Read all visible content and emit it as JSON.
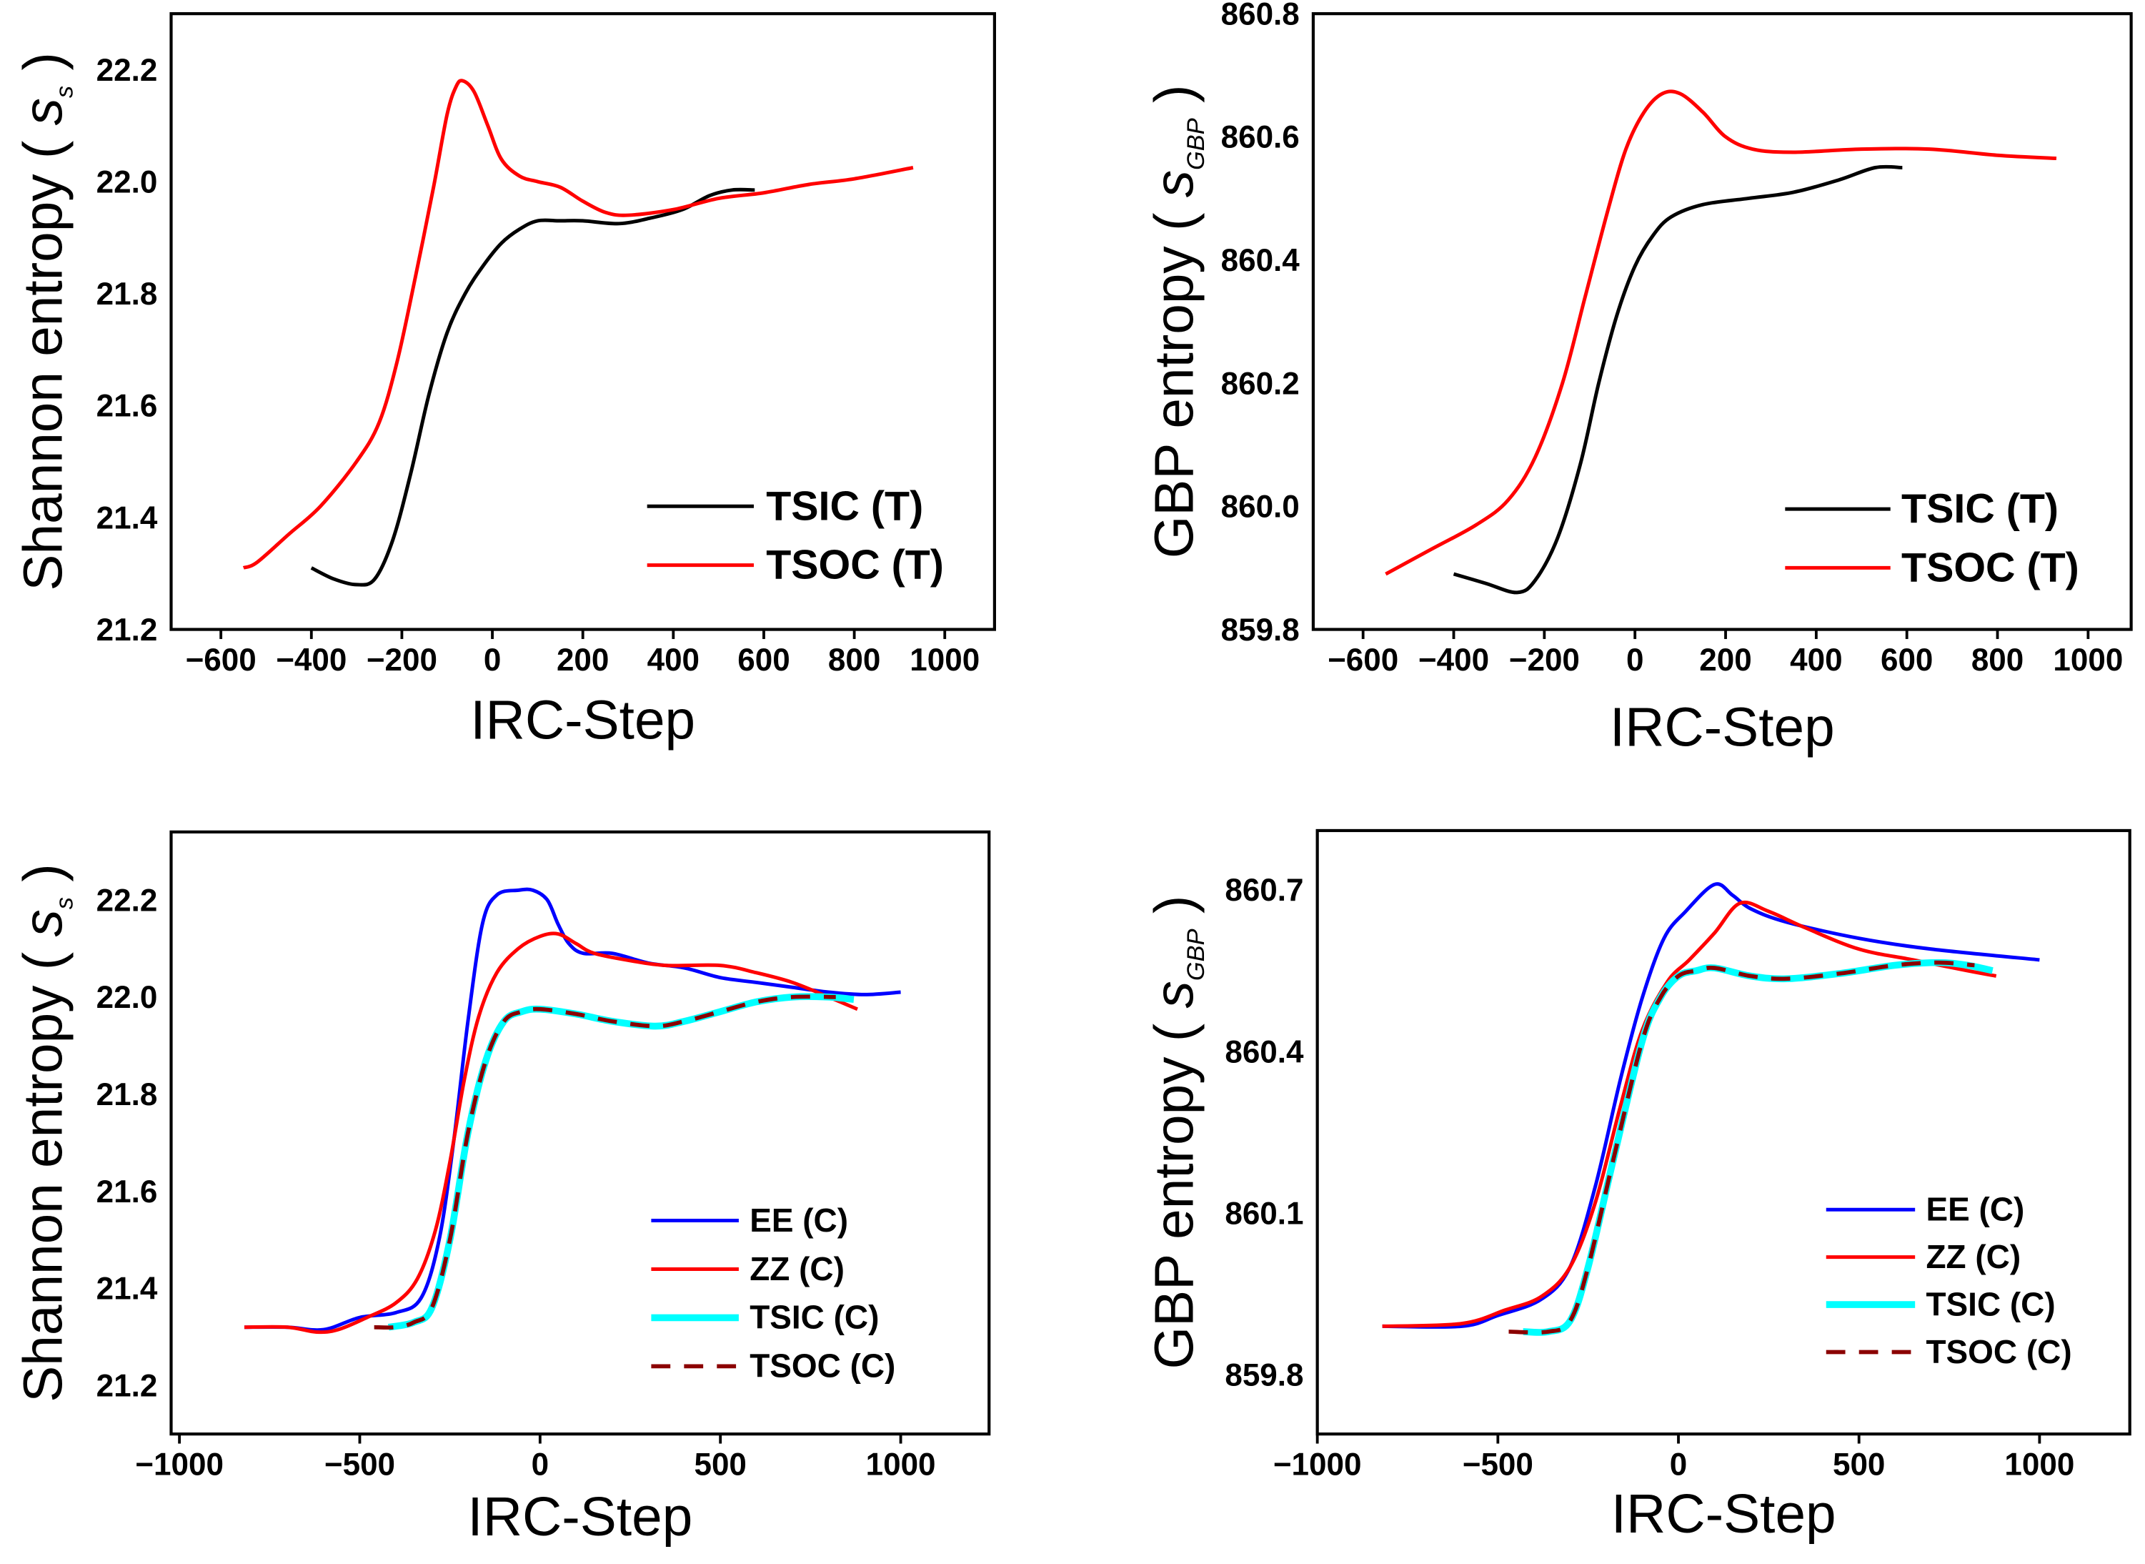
{
  "chart_data": [
    {
      "type": "line",
      "xlabel": "IRC-Step",
      "ylabel": "Shannon entropy",
      "ylabel_symbol": "s",
      "ylabel_sub": "s",
      "xlim": [
        -710,
        1110
      ],
      "ylim": [
        21.2,
        22.3
      ],
      "xticks": [
        -600,
        -400,
        -200,
        0,
        200,
        400,
        600,
        800,
        1000
      ],
      "yticks": [
        21.2,
        21.4,
        21.6,
        21.8,
        22.0,
        22.2
      ],
      "ytick_decimals": 1,
      "legend_position": "bottom-right",
      "series": [
        {
          "name": "TSIC (T)",
          "color": "#000000",
          "style": "solid",
          "x": [
            -400,
            -350,
            -300,
            -260,
            -220,
            -180,
            -140,
            -100,
            -60,
            -20,
            20,
            60,
            100,
            150,
            200,
            280,
            350,
            420,
            480,
            530,
            580
          ],
          "y": [
            21.31,
            21.29,
            21.28,
            21.29,
            21.36,
            21.48,
            21.62,
            21.73,
            21.8,
            21.85,
            21.89,
            21.915,
            21.93,
            21.93,
            21.93,
            21.925,
            21.935,
            21.95,
            21.975,
            21.985,
            21.985
          ]
        },
        {
          "name": "TSOC (T)",
          "color": "#ff0000",
          "style": "solid",
          "x": [
            -550,
            -520,
            -450,
            -380,
            -300,
            -250,
            -210,
            -170,
            -130,
            -100,
            -80,
            -65,
            -40,
            -10,
            20,
            60,
            100,
            150,
            200,
            250,
            300,
            400,
            500,
            600,
            700,
            800,
            930
          ],
          "y": [
            21.31,
            21.32,
            21.37,
            21.42,
            21.5,
            21.57,
            21.68,
            21.83,
            21.99,
            22.12,
            22.17,
            22.18,
            22.16,
            22.1,
            22.04,
            22.01,
            22.0,
            21.99,
            21.965,
            21.945,
            21.94,
            21.95,
            21.97,
            21.98,
            21.995,
            22.005,
            22.025
          ]
        }
      ]
    },
    {
      "type": "line",
      "xlabel": "IRC-Step",
      "ylabel": "GBP entropy",
      "ylabel_symbol": "s",
      "ylabel_sub": "GBP",
      "xlim": [
        -710,
        1095
      ],
      "ylim": [
        859.8,
        860.8
      ],
      "xticks": [
        -600,
        -400,
        -200,
        0,
        200,
        400,
        600,
        800,
        1000
      ],
      "yticks": [
        859.8,
        860.0,
        860.2,
        860.4,
        860.6,
        860.8
      ],
      "ytick_decimals": 1,
      "legend_position": "bottom-right",
      "series": [
        {
          "name": "TSIC (T)",
          "color": "#000000",
          "style": "solid",
          "x": [
            -400,
            -330,
            -260,
            -220,
            -170,
            -120,
            -80,
            -40,
            0,
            40,
            80,
            150,
            250,
            350,
            450,
            530,
            590
          ],
          "y": [
            859.89,
            859.875,
            859.86,
            859.88,
            859.95,
            860.07,
            860.2,
            860.31,
            860.39,
            860.44,
            860.47,
            860.49,
            860.5,
            860.51,
            860.53,
            860.55,
            860.55
          ]
        },
        {
          "name": "TSOC (T)",
          "color": "#ff0000",
          "style": "solid",
          "x": [
            -550,
            -450,
            -350,
            -280,
            -220,
            -160,
            -110,
            -60,
            -20,
            20,
            60,
            100,
            150,
            200,
            260,
            350,
            500,
            650,
            800,
            930
          ],
          "y": [
            859.89,
            859.93,
            859.97,
            860.01,
            860.08,
            860.2,
            860.34,
            860.48,
            860.58,
            860.64,
            860.67,
            860.67,
            860.64,
            860.6,
            860.58,
            860.575,
            860.58,
            860.58,
            860.57,
            860.565
          ]
        }
      ]
    },
    {
      "type": "line",
      "xlabel": "IRC-Step",
      "ylabel": "Shannon entropy",
      "ylabel_symbol": "s",
      "ylabel_sub": "s",
      "xlim": [
        -1023,
        1245
      ],
      "ylim": [
        21.1,
        22.34
      ],
      "xticks": [
        -1000,
        -500,
        0,
        500,
        1000
      ],
      "yticks": [
        21.2,
        21.4,
        21.6,
        21.8,
        22.0,
        22.2
      ],
      "ytick_decimals": 1,
      "legend_position": "bottom-right",
      "series": [
        {
          "name": "EE (C)",
          "color": "#0000ff",
          "style": "solid",
          "x": [
            -820,
            -700,
            -600,
            -500,
            -400,
            -330,
            -280,
            -240,
            -200,
            -160,
            -120,
            -60,
            -20,
            20,
            50,
            80,
            120,
            200,
            300,
            400,
            500,
            600,
            700,
            800,
            900,
            1000
          ],
          "y": [
            21.32,
            21.32,
            21.315,
            21.34,
            21.35,
            21.38,
            21.5,
            21.7,
            21.95,
            22.15,
            22.21,
            22.22,
            22.22,
            22.2,
            22.15,
            22.11,
            22.09,
            22.09,
            22.07,
            22.06,
            22.04,
            22.03,
            22.02,
            22.01,
            22.005,
            22.01
          ]
        },
        {
          "name": "ZZ (C)",
          "color": "#ff0000",
          "style": "solid",
          "x": [
            -820,
            -700,
            -620,
            -560,
            -480,
            -400,
            -340,
            -290,
            -250,
            -210,
            -170,
            -120,
            -60,
            0,
            50,
            100,
            150,
            250,
            350,
            500,
            600,
            700,
            800,
            880
          ],
          "y": [
            21.32,
            21.32,
            21.31,
            21.315,
            21.34,
            21.37,
            21.42,
            21.52,
            21.66,
            21.83,
            21.96,
            22.05,
            22.1,
            22.125,
            22.13,
            22.11,
            22.09,
            22.075,
            22.065,
            22.065,
            22.05,
            22.03,
            22.0,
            21.975
          ]
        },
        {
          "name": "TSIC (C)",
          "color": "#00ffff",
          "style": "thick",
          "x": [
            -420,
            -350,
            -300,
            -250,
            -200,
            -150,
            -100,
            -50,
            0,
            100,
            200,
            320,
            400,
            500,
            600,
            700,
            800,
            870
          ],
          "y": [
            21.32,
            21.33,
            21.36,
            21.5,
            21.72,
            21.87,
            21.95,
            21.97,
            21.975,
            21.965,
            21.95,
            21.94,
            21.95,
            21.97,
            21.99,
            22.0,
            22.0,
            21.995
          ]
        },
        {
          "name": "TSOC (C)",
          "color": "#8b0000",
          "style": "dashed",
          "x": [
            -460,
            -400,
            -350,
            -300,
            -250,
            -200,
            -150,
            -100,
            -50,
            0,
            100,
            200,
            320,
            400,
            500,
            600,
            700,
            820
          ],
          "y": [
            21.32,
            21.32,
            21.33,
            21.36,
            21.5,
            21.72,
            21.87,
            21.95,
            21.97,
            21.975,
            21.965,
            21.95,
            21.94,
            21.95,
            21.97,
            21.99,
            22.0,
            22.0
          ]
        }
      ]
    },
    {
      "type": "line",
      "xlabel": "IRC-Step",
      "ylabel": "GBP entropy",
      "ylabel_symbol": "s",
      "ylabel_sub": "GBP",
      "xlim": [
        -1000,
        1250
      ],
      "ylim": [
        859.69,
        860.81
      ],
      "xticks": [
        -1000,
        -500,
        0,
        500,
        1000
      ],
      "yticks": [
        859.8,
        860.1,
        860.4,
        860.7
      ],
      "ytick_decimals": 1,
      "legend_position": "bottom-right",
      "series": [
        {
          "name": "EE (C)",
          "color": "#0000ff",
          "style": "solid",
          "x": [
            -820,
            -600,
            -500,
            -380,
            -300,
            -230,
            -160,
            -100,
            -40,
            20,
            100,
            150,
            200,
            300,
            500,
            700,
            1000
          ],
          "y": [
            859.89,
            859.89,
            859.91,
            859.94,
            860.0,
            860.15,
            860.35,
            860.5,
            860.61,
            860.66,
            860.71,
            860.69,
            860.665,
            860.64,
            860.61,
            860.59,
            860.57
          ]
        },
        {
          "name": "ZZ (C)",
          "color": "#ff0000",
          "style": "solid",
          "x": [
            -820,
            -600,
            -480,
            -380,
            -300,
            -230,
            -160,
            -100,
            -30,
            30,
            100,
            170,
            250,
            350,
            500,
            650,
            800,
            880
          ],
          "y": [
            859.89,
            859.895,
            859.92,
            859.945,
            860.0,
            860.12,
            860.3,
            860.44,
            860.53,
            860.57,
            860.62,
            860.675,
            860.66,
            860.63,
            860.59,
            860.57,
            860.55,
            860.54
          ]
        },
        {
          "name": "TSIC (C)",
          "color": "#00ffff",
          "style": "thick",
          "x": [
            -430,
            -360,
            -300,
            -250,
            -180,
            -100,
            -50,
            0,
            50,
            100,
            200,
            300,
            450,
            600,
            720,
            800,
            870
          ],
          "y": [
            859.88,
            859.88,
            859.9,
            860.0,
            860.2,
            860.42,
            860.5,
            860.54,
            860.55,
            860.555,
            860.54,
            860.535,
            860.545,
            860.56,
            860.565,
            860.56,
            860.55
          ]
        },
        {
          "name": "TSOC (C)",
          "color": "#8b0000",
          "style": "dashed",
          "x": [
            -470,
            -360,
            -300,
            -250,
            -180,
            -100,
            -50,
            0,
            50,
            100,
            200,
            300,
            450,
            600,
            720,
            820
          ],
          "y": [
            859.88,
            859.88,
            859.9,
            860.0,
            860.2,
            860.42,
            860.5,
            860.54,
            860.55,
            860.555,
            860.54,
            860.535,
            860.545,
            860.56,
            860.565,
            860.56
          ]
        }
      ]
    }
  ]
}
